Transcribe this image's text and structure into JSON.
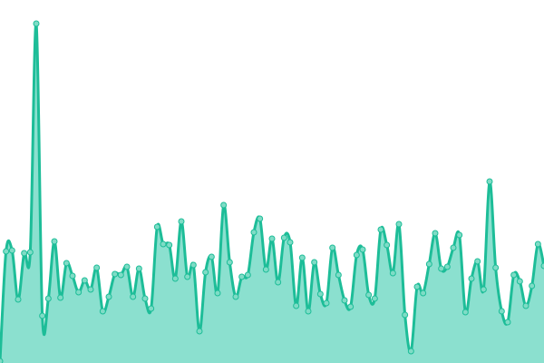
{
  "chart_data": {
    "type": "area",
    "title": "",
    "xlabel": "",
    "ylabel": "",
    "grid": false,
    "legend": "none",
    "curve": "smooth",
    "markers": true,
    "ylim": [
      0,
      400
    ],
    "colors": {
      "line": "#1dbd98",
      "fill": "#8be0cf",
      "marker_fill": "#7fdcc6"
    },
    "values": [
      2,
      123,
      124,
      70,
      121,
      122,
      374,
      52,
      71,
      134,
      72,
      110,
      96,
      78,
      91,
      81,
      105,
      57,
      73,
      98,
      97,
      106,
      73,
      104,
      71,
      60,
      150,
      131,
      130,
      93,
      156,
      95,
      108,
      35,
      100,
      117,
      77,
      174,
      111,
      73,
      95,
      97,
      144,
      159,
      103,
      137,
      89,
      138,
      133,
      63,
      116,
      57,
      111,
      76,
      66,
      127,
      97,
      69,
      62,
      119,
      125,
      75,
      71,
      147,
      130,
      99,
      153,
      53,
      13,
      84,
      77,
      109,
      143,
      104,
      106,
      127,
      141,
      56,
      93,
      112,
      81,
      200,
      105,
      57,
      45,
      97,
      90,
      63,
      85,
      131,
      107
    ]
  }
}
